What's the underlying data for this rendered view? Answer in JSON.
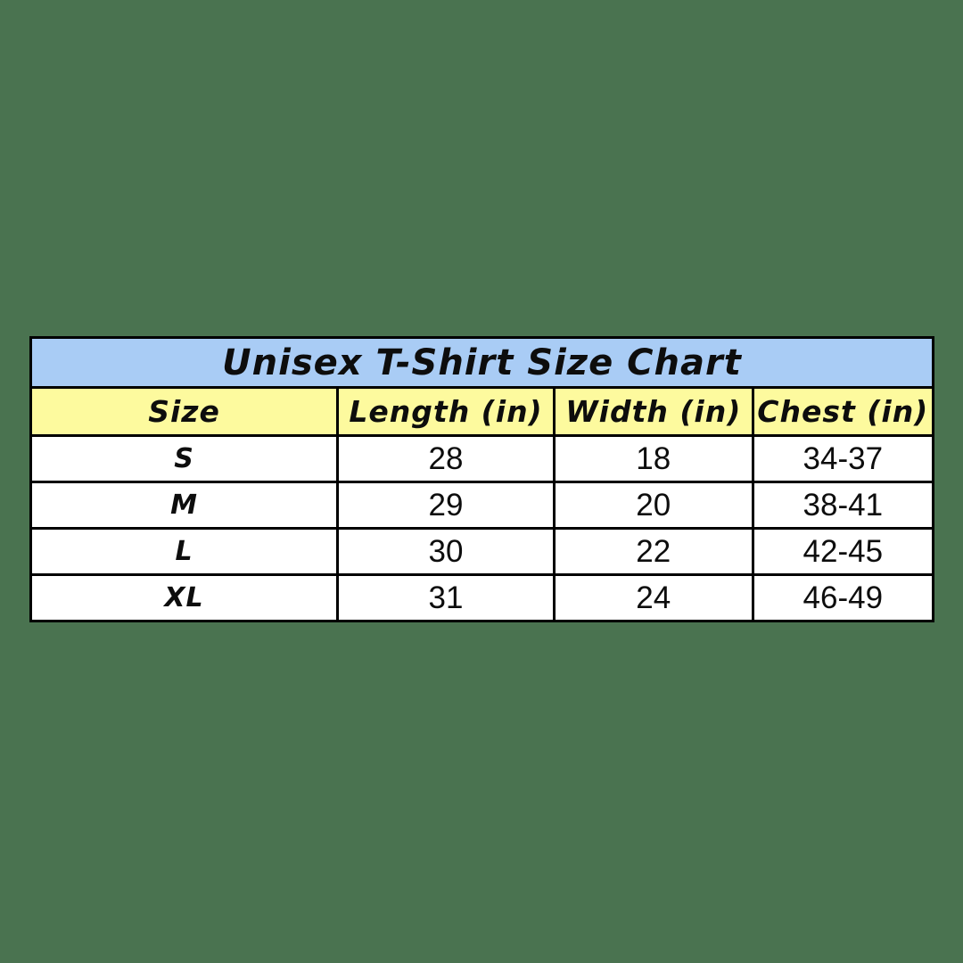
{
  "colors": {
    "page_background": "#4a7350",
    "title_row_background": "#a9ccf5",
    "header_row_background": "#fdfa9e",
    "data_row_background": "#ffffff",
    "border": "#000000",
    "text": "#0d0d0d"
  },
  "chart_data": {
    "type": "table",
    "title": "Unisex T-Shirt Size Chart",
    "columns": [
      "Size",
      "Length (in)",
      "Width (in)",
      "Chest (in)"
    ],
    "rows": [
      [
        "S",
        "28",
        "18",
        "34-37"
      ],
      [
        "M",
        "29",
        "20",
        "38-41"
      ],
      [
        "L",
        "30",
        "22",
        "42-45"
      ],
      [
        "XL",
        "31",
        "24",
        "46-49"
      ]
    ]
  }
}
